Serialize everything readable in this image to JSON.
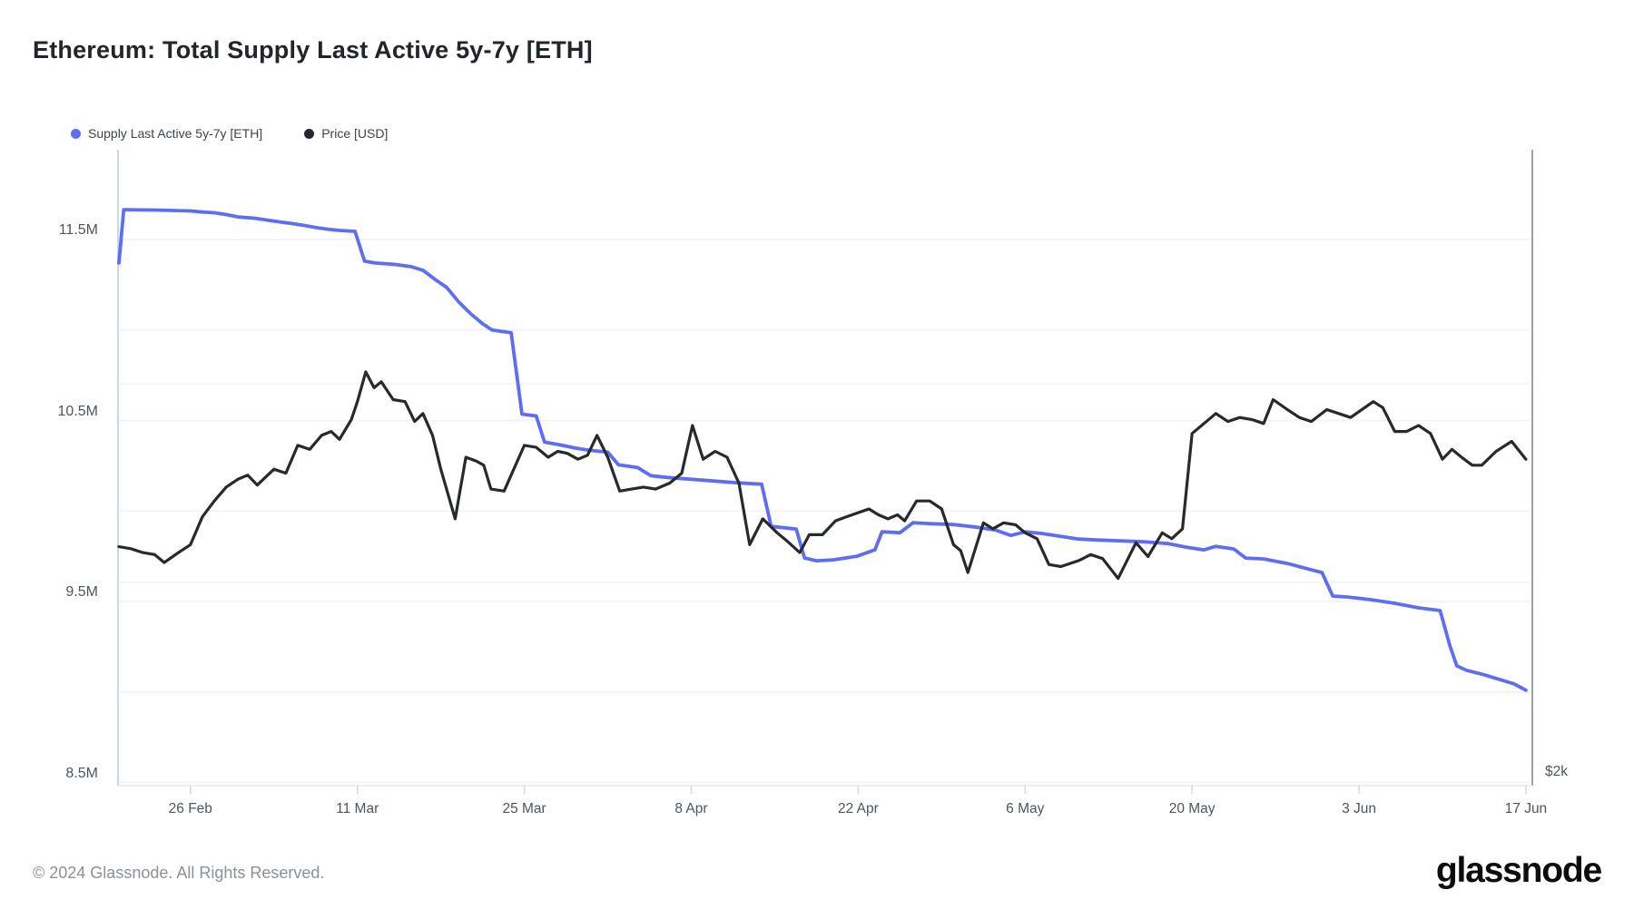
{
  "page": {
    "title": "Ethereum: Total Supply Last Active 5y-7y [ETH]",
    "footer_copyright": "© 2024 Glassnode. All Rights Reserved.",
    "brand_wordmark": "glassnode"
  },
  "colors": {
    "supply_line": "#5f6ef1",
    "price_line": "#26292d",
    "gridline": "#f1f2f4",
    "plot_border_left": "#cbd4f2",
    "plot_border_right": "#9ba1a8",
    "plot_border_bottom": "#e5e8ec",
    "tick": "#d5d8dc",
    "axis_text": "#4d565e"
  },
  "chart_data": {
    "type": "line",
    "title": "Ethereum: Total Supply Last Active 5y-7y [ETH]",
    "legend_position": "top-left",
    "grid": "on",
    "x_axis": {
      "unit": "date",
      "start_date": "2024-02-20",
      "end_date": "2024-06-17",
      "tick_labels": [
        "26 Feb",
        "11 Mar",
        "25 Mar",
        "8 Apr",
        "22 Apr",
        "6 May",
        "20 May",
        "3 Jun",
        "17 Jun"
      ],
      "tick_days": [
        6,
        20,
        34,
        48,
        62,
        76,
        90,
        104,
        118
      ]
    },
    "y_axis_left": {
      "name": "Supply Last Active 5y-7y [ETH]",
      "unit": "M ETH",
      "tick_labels": [
        "11.5M",
        "10.5M",
        "9.5M",
        "8.5M"
      ],
      "tick_values": [
        11.5,
        10.5,
        9.5,
        8.5
      ],
      "gridline_values": [
        11.5,
        11.0,
        10.5,
        10.0,
        9.5,
        9.0,
        8.5
      ],
      "range": [
        8.47,
        12.0
      ]
    },
    "y_axis_right": {
      "name": "Price [USD]",
      "unit": "USD (thousands)",
      "tick_labels": [
        "$2k"
      ],
      "tick_values": [
        2
      ],
      "gridline_values": [
        4,
        3
      ],
      "range": [
        1.97,
        5.18
      ]
    },
    "series": [
      {
        "name": "Supply Last Active 5y-7y [ETH]",
        "axis": "left",
        "color": "#5f6ef1",
        "stroke_width": 3.8,
        "points": [
          [
            0,
            11.37
          ],
          [
            0.4,
            11.665
          ],
          [
            3,
            11.663
          ],
          [
            6,
            11.658
          ],
          [
            7,
            11.652
          ],
          [
            8,
            11.648
          ],
          [
            9,
            11.638
          ],
          [
            10,
            11.625
          ],
          [
            11.5,
            11.617
          ],
          [
            12.5,
            11.607
          ],
          [
            13.5,
            11.597
          ],
          [
            14.5,
            11.588
          ],
          [
            15.5,
            11.578
          ],
          [
            16.5,
            11.566
          ],
          [
            17.5,
            11.557
          ],
          [
            18.5,
            11.55
          ],
          [
            19.8,
            11.545
          ],
          [
            20.6,
            11.38
          ],
          [
            21.5,
            11.37
          ],
          [
            23,
            11.363
          ],
          [
            24.5,
            11.35
          ],
          [
            25.5,
            11.33
          ],
          [
            26.5,
            11.28
          ],
          [
            27.5,
            11.235
          ],
          [
            28.5,
            11.155
          ],
          [
            29.5,
            11.09
          ],
          [
            30.5,
            11.035
          ],
          [
            31.3,
            11.0
          ],
          [
            32.9,
            10.985
          ],
          [
            33.8,
            10.535
          ],
          [
            35,
            10.525
          ],
          [
            35.7,
            10.38
          ],
          [
            37,
            10.365
          ],
          [
            38.5,
            10.345
          ],
          [
            39.5,
            10.335
          ],
          [
            41,
            10.325
          ],
          [
            41.9,
            10.255
          ],
          [
            43.5,
            10.24
          ],
          [
            44.6,
            10.195
          ],
          [
            46,
            10.185
          ],
          [
            48,
            10.175
          ],
          [
            50,
            10.165
          ],
          [
            52,
            10.155
          ],
          [
            53.9,
            10.148
          ],
          [
            54.7,
            9.915
          ],
          [
            56.8,
            9.9
          ],
          [
            57.5,
            9.74
          ],
          [
            58.5,
            9.725
          ],
          [
            59.9,
            9.73
          ],
          [
            61.9,
            9.75
          ],
          [
            63.4,
            9.785
          ],
          [
            64,
            9.885
          ],
          [
            65.5,
            9.88
          ],
          [
            66.6,
            9.935
          ],
          [
            68,
            9.93
          ],
          [
            70,
            9.925
          ],
          [
            72,
            9.91
          ],
          [
            73.5,
            9.895
          ],
          [
            74.8,
            9.865
          ],
          [
            76,
            9.885
          ],
          [
            77.5,
            9.875
          ],
          [
            79,
            9.86
          ],
          [
            80.5,
            9.845
          ],
          [
            82,
            9.84
          ],
          [
            84,
            9.835
          ],
          [
            86,
            9.83
          ],
          [
            88,
            9.82
          ],
          [
            89.5,
            9.8
          ],
          [
            91,
            9.785
          ],
          [
            92,
            9.805
          ],
          [
            93.5,
            9.79
          ],
          [
            94.5,
            9.74
          ],
          [
            96,
            9.735
          ],
          [
            98,
            9.71
          ],
          [
            100,
            9.675
          ],
          [
            100.9,
            9.66
          ],
          [
            101.8,
            9.53
          ],
          [
            103,
            9.525
          ],
          [
            105,
            9.51
          ],
          [
            107,
            9.49
          ],
          [
            109,
            9.465
          ],
          [
            110.8,
            9.45
          ],
          [
            111.6,
            9.26
          ],
          [
            112.2,
            9.145
          ],
          [
            113,
            9.12
          ],
          [
            114.5,
            9.095
          ],
          [
            116,
            9.065
          ],
          [
            117,
            9.045
          ],
          [
            118,
            9.01
          ]
        ]
      },
      {
        "name": "Price [USD]",
        "axis": "right",
        "color": "#26292d",
        "stroke_width": 3.2,
        "points": [
          [
            0,
            3.18
          ],
          [
            1,
            3.17
          ],
          [
            2,
            3.15
          ],
          [
            3,
            3.14
          ],
          [
            3.8,
            3.1
          ],
          [
            5,
            3.15
          ],
          [
            6,
            3.19
          ],
          [
            7,
            3.33
          ],
          [
            8,
            3.41
          ],
          [
            9,
            3.48
          ],
          [
            10,
            3.52
          ],
          [
            10.8,
            3.54
          ],
          [
            11.6,
            3.49
          ],
          [
            13,
            3.57
          ],
          [
            14,
            3.55
          ],
          [
            15,
            3.69
          ],
          [
            16,
            3.67
          ],
          [
            17,
            3.74
          ],
          [
            17.8,
            3.76
          ],
          [
            18.5,
            3.72
          ],
          [
            19.5,
            3.82
          ],
          [
            20,
            3.91
          ],
          [
            20.7,
            4.06
          ],
          [
            21.4,
            3.98
          ],
          [
            22,
            4.01
          ],
          [
            23,
            3.92
          ],
          [
            24,
            3.91
          ],
          [
            24.8,
            3.81
          ],
          [
            25.5,
            3.85
          ],
          [
            26.3,
            3.74
          ],
          [
            27,
            3.57
          ],
          [
            28.2,
            3.32
          ],
          [
            29.1,
            3.63
          ],
          [
            30,
            3.61
          ],
          [
            30.6,
            3.59
          ],
          [
            31.2,
            3.47
          ],
          [
            32.3,
            3.46
          ],
          [
            34,
            3.69
          ],
          [
            35,
            3.68
          ],
          [
            36,
            3.63
          ],
          [
            36.8,
            3.66
          ],
          [
            37.6,
            3.65
          ],
          [
            38.5,
            3.62
          ],
          [
            39.3,
            3.64
          ],
          [
            40.1,
            3.74
          ],
          [
            41,
            3.63
          ],
          [
            42,
            3.46
          ],
          [
            43,
            3.47
          ],
          [
            44,
            3.48
          ],
          [
            45,
            3.47
          ],
          [
            46.2,
            3.5
          ],
          [
            47.2,
            3.55
          ],
          [
            48.1,
            3.79
          ],
          [
            49,
            3.62
          ],
          [
            50,
            3.66
          ],
          [
            51,
            3.63
          ],
          [
            52,
            3.5
          ],
          [
            52.9,
            3.19
          ],
          [
            54,
            3.32
          ],
          [
            55.2,
            3.25
          ],
          [
            56,
            3.21
          ],
          [
            57.1,
            3.15
          ],
          [
            57.9,
            3.24
          ],
          [
            59,
            3.24
          ],
          [
            60.1,
            3.31
          ],
          [
            61,
            3.33
          ],
          [
            62.9,
            3.37
          ],
          [
            63.7,
            3.34
          ],
          [
            64.5,
            3.32
          ],
          [
            65.3,
            3.34
          ],
          [
            65.9,
            3.31
          ],
          [
            66.9,
            3.41
          ],
          [
            68,
            3.41
          ],
          [
            69,
            3.37
          ],
          [
            70,
            3.19
          ],
          [
            70.6,
            3.16
          ],
          [
            71.2,
            3.05
          ],
          [
            72.5,
            3.3
          ],
          [
            73.3,
            3.27
          ],
          [
            74.2,
            3.3
          ],
          [
            75.2,
            3.29
          ],
          [
            76,
            3.25
          ],
          [
            77,
            3.22
          ],
          [
            78,
            3.09
          ],
          [
            79,
            3.08
          ],
          [
            80.5,
            3.11
          ],
          [
            81.5,
            3.14
          ],
          [
            82.5,
            3.12
          ],
          [
            83.8,
            3.02
          ],
          [
            85.3,
            3.2
          ],
          [
            86.3,
            3.13
          ],
          [
            87.5,
            3.25
          ],
          [
            88.3,
            3.22
          ],
          [
            89.2,
            3.27
          ],
          [
            90,
            3.75
          ],
          [
            91,
            3.8
          ],
          [
            92,
            3.85
          ],
          [
            93,
            3.81
          ],
          [
            94,
            3.83
          ],
          [
            95,
            3.82
          ],
          [
            96,
            3.8
          ],
          [
            96.8,
            3.92
          ],
          [
            98,
            3.87
          ],
          [
            99,
            3.83
          ],
          [
            100,
            3.81
          ],
          [
            101.3,
            3.87
          ],
          [
            102.3,
            3.85
          ],
          [
            103.3,
            3.83
          ],
          [
            105.2,
            3.91
          ],
          [
            106,
            3.88
          ],
          [
            107,
            3.76
          ],
          [
            108,
            3.76
          ],
          [
            109,
            3.79
          ],
          [
            110,
            3.75
          ],
          [
            111,
            3.62
          ],
          [
            111.8,
            3.67
          ],
          [
            112.6,
            3.63
          ],
          [
            113.5,
            3.59
          ],
          [
            114.3,
            3.59
          ],
          [
            115.5,
            3.66
          ],
          [
            116.8,
            3.71
          ],
          [
            118,
            3.62
          ]
        ]
      }
    ]
  }
}
